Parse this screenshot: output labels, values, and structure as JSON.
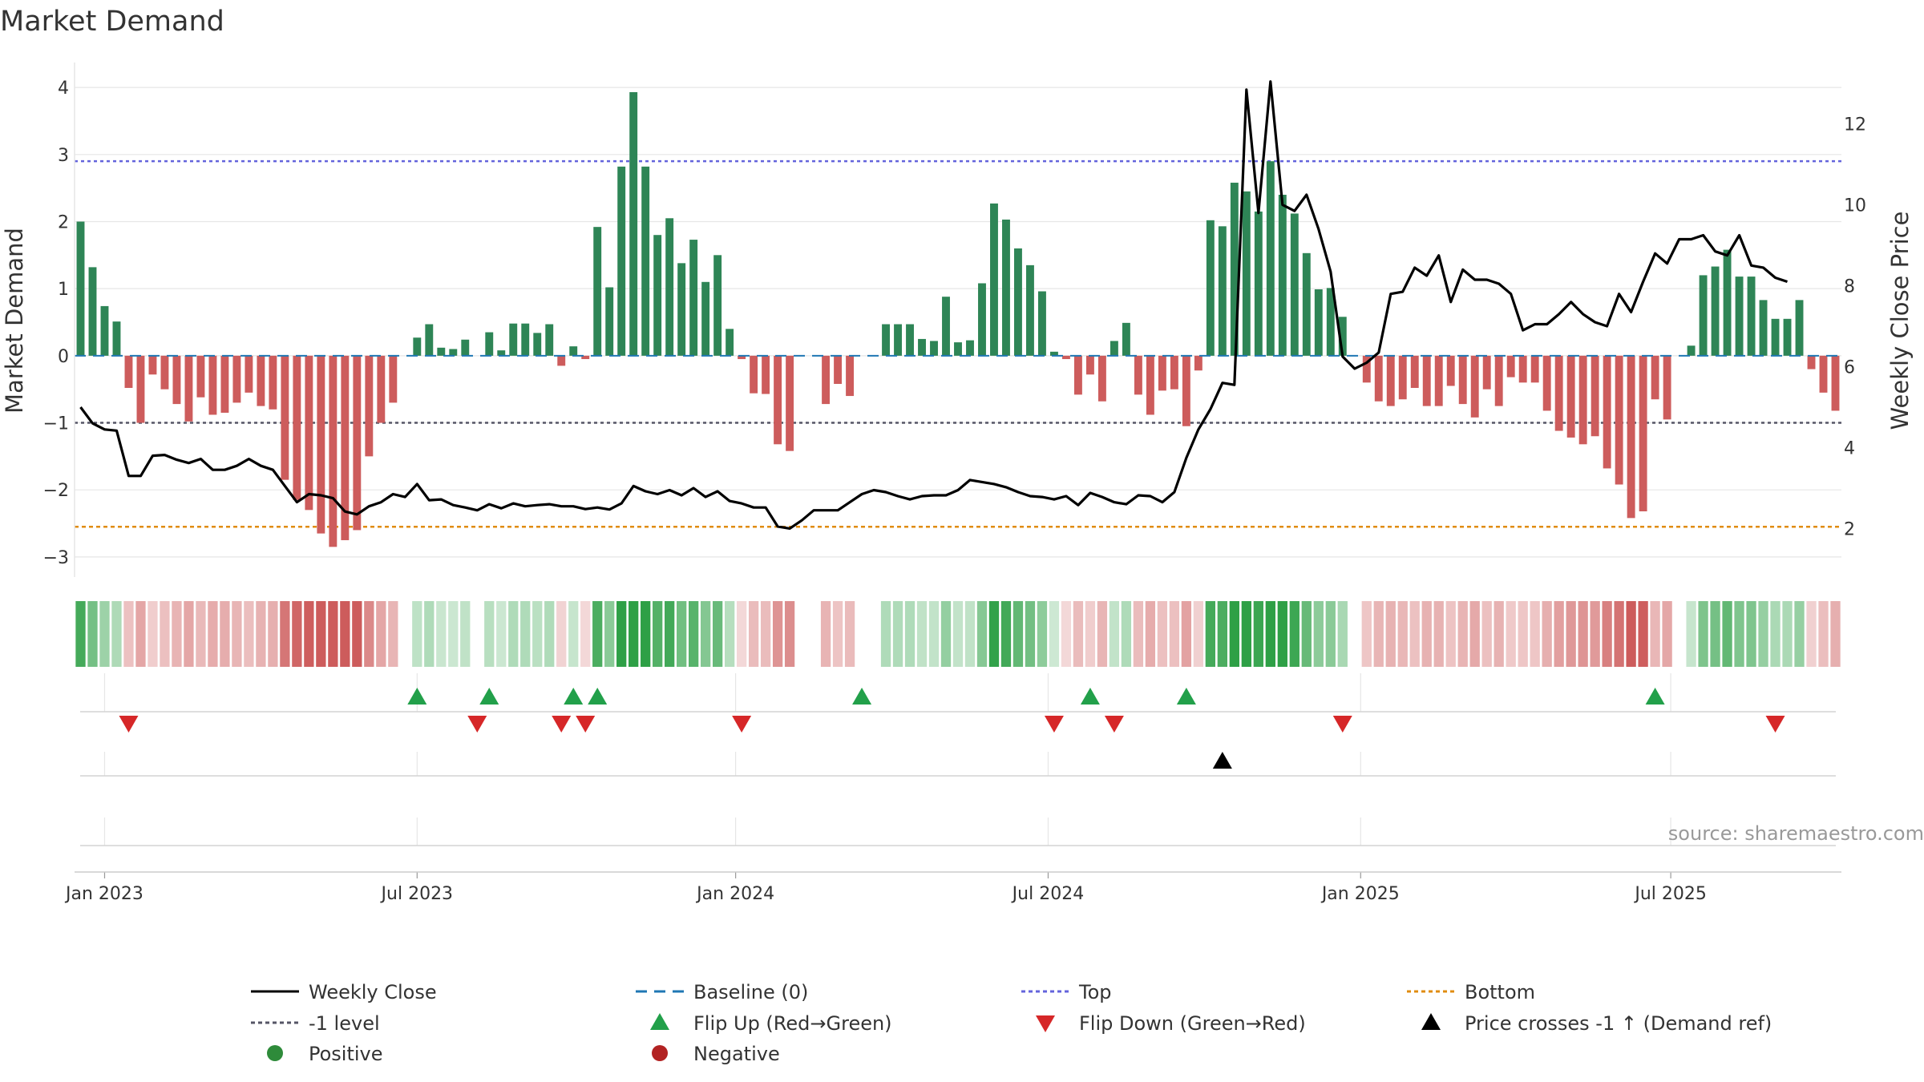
{
  "title": "Market Demand",
  "source": "source: sharemaestro.com",
  "chart_data": {
    "type": "bar",
    "title": "Market Demand",
    "ylabel": "Market Demand",
    "y2label": "Weekly Close Price",
    "ylim": [
      -3.3,
      4.3
    ],
    "y2lim": [
      0.8,
      13.4
    ],
    "yticks": [
      4,
      3,
      2,
      1,
      0,
      -1,
      -2,
      -3
    ],
    "ytick_labels": [
      "4",
      "3",
      "2",
      "1",
      "0",
      "−1",
      "−2",
      "−3"
    ],
    "y2ticks": [
      12,
      10,
      8,
      6,
      4,
      2
    ],
    "y2tick_labels": [
      "12",
      "10",
      "8",
      "6",
      "4",
      "2"
    ],
    "x_axis_labels": [
      {
        "week": 2,
        "label": "Jan 2023"
      },
      {
        "week": 28,
        "label": "Jul 2023"
      },
      {
        "week": 54.5,
        "label": "Jan 2024"
      },
      {
        "week": 80.5,
        "label": "Jul 2024"
      },
      {
        "week": 106.5,
        "label": "Jan 2025"
      },
      {
        "week": 132.3,
        "label": "Jul 2025"
      }
    ],
    "reference_lines": {
      "top": 2.9,
      "bottom": -2.55,
      "minus_one": -1,
      "baseline": 0
    },
    "start_date": "2022-12-23",
    "interval": "weekly",
    "demand": [
      2.0,
      1.32,
      0.74,
      0.51,
      -0.48,
      -1.0,
      -0.28,
      -0.5,
      -0.72,
      -0.98,
      -0.62,
      -0.88,
      -0.85,
      -0.7,
      -0.55,
      -0.75,
      -0.8,
      -1.85,
      -2.15,
      -2.3,
      -2.65,
      -2.85,
      -2.75,
      -2.6,
      -1.5,
      -1.0,
      -0.7,
      0.0,
      0.27,
      0.47,
      0.12,
      0.1,
      0.24,
      0.0,
      0.35,
      0.08,
      0.48,
      0.48,
      0.34,
      0.47,
      -0.15,
      0.14,
      -0.05,
      1.92,
      1.02,
      2.82,
      3.93,
      2.82,
      1.8,
      2.05,
      1.38,
      1.73,
      1.1,
      1.5,
      0.4,
      -0.05,
      -0.56,
      -0.57,
      -1.32,
      -1.42,
      0.0,
      0.0,
      -0.72,
      -0.42,
      -0.6,
      0.0,
      0.0,
      0.47,
      0.47,
      0.47,
      0.25,
      0.22,
      0.88,
      0.2,
      0.23,
      1.08,
      2.27,
      2.03,
      1.6,
      1.35,
      0.96,
      0.06,
      -0.05,
      -0.58,
      -0.28,
      -0.68,
      0.22,
      0.49,
      -0.58,
      -0.88,
      -0.52,
      -0.5,
      -1.05,
      -0.22,
      2.02,
      1.93,
      2.58,
      2.45,
      2.15,
      2.9,
      2.4,
      2.12,
      1.53,
      0.99,
      1.01,
      0.58,
      0.0,
      -0.4,
      -0.68,
      -0.75,
      -0.65,
      -0.48,
      -0.75,
      -0.75,
      -0.45,
      -0.72,
      -0.92,
      -0.5,
      -0.75,
      -0.32,
      -0.4,
      -0.4,
      -0.82,
      -1.12,
      -1.22,
      -1.32,
      -1.2,
      -1.68,
      -1.92,
      -2.42,
      -2.32,
      -0.65,
      -0.95,
      0.0,
      0.15,
      1.2,
      1.33,
      1.58,
      1.18,
      1.18,
      0.83,
      0.55,
      0.55,
      0.83,
      -0.2,
      -0.55,
      -0.82
    ],
    "weekly_close": [
      5.0,
      4.6,
      4.45,
      4.42,
      3.3,
      3.3,
      3.8,
      3.82,
      3.7,
      3.62,
      3.72,
      3.45,
      3.45,
      3.55,
      3.72,
      3.55,
      3.45,
      3.05,
      2.65,
      2.85,
      2.82,
      2.75,
      2.42,
      2.35,
      2.55,
      2.65,
      2.85,
      2.78,
      3.1,
      2.7,
      2.72,
      2.58,
      2.52,
      2.45,
      2.6,
      2.5,
      2.62,
      2.55,
      2.58,
      2.6,
      2.55,
      2.55,
      2.48,
      2.52,
      2.47,
      2.62,
      3.05,
      2.92,
      2.85,
      2.95,
      2.82,
      3.0,
      2.78,
      2.92,
      2.68,
      2.62,
      2.52,
      2.52,
      2.05,
      2.0,
      2.2,
      2.45,
      2.45,
      2.45,
      2.65,
      2.85,
      2.95,
      2.9,
      2.8,
      2.72,
      2.8,
      2.82,
      2.82,
      2.95,
      3.2,
      3.15,
      3.1,
      3.02,
      2.9,
      2.8,
      2.78,
      2.72,
      2.8,
      2.58,
      2.88,
      2.78,
      2.65,
      2.6,
      2.82,
      2.8,
      2.65,
      2.9,
      3.75,
      4.45,
      4.95,
      5.6,
      5.55,
      12.85,
      9.8,
      13.05,
      10.0,
      9.85,
      10.25,
      9.4,
      8.35,
      6.25,
      5.95,
      6.1,
      6.35,
      7.8,
      7.85,
      8.45,
      8.25,
      8.75,
      7.6,
      8.4,
      8.15,
      8.15,
      8.05,
      7.8,
      6.9,
      7.05,
      7.05,
      7.3,
      7.6,
      7.3,
      7.1,
      7.0,
      7.8,
      7.35,
      8.1,
      8.8,
      8.55,
      9.15,
      9.15,
      9.25,
      8.85,
      8.75,
      9.25,
      8.5,
      8.45,
      8.2,
      8.1
    ],
    "flip_up_weeks": [
      28,
      34,
      41,
      43,
      65,
      84,
      92,
      131
    ],
    "flip_down_weeks": [
      4,
      33,
      40,
      42,
      55,
      81,
      86,
      105,
      141
    ],
    "price_cross_weeks": [
      95
    ]
  },
  "legend": [
    {
      "label": "Weekly Close",
      "symbol": "line",
      "color": "#000000",
      "dash": "solid"
    },
    {
      "label": "Baseline (0)",
      "symbol": "line",
      "color": "#1f77b4",
      "dash": "dashed"
    },
    {
      "label": "Top",
      "symbol": "line",
      "color": "#6464dc",
      "dash": "dotted"
    },
    {
      "label": "Bottom",
      "symbol": "line",
      "color": "#e08c10",
      "dash": "dotted"
    },
    {
      "label": "-1 level",
      "symbol": "line",
      "color": "#555566",
      "dash": "dotted"
    },
    {
      "label": "Flip Up (Red→Green)",
      "symbol": "tri-up",
      "color": "#22a04a"
    },
    {
      "label": "Flip Down (Green→Red)",
      "symbol": "tri-down",
      "color": "#d62728"
    },
    {
      "label": "Price crosses -1 ↑ (Demand ref)",
      "symbol": "tri-up",
      "color": "#000000"
    },
    {
      "label": "Positive",
      "symbol": "circle",
      "color": "#2e8b3a"
    },
    {
      "label": "Negative",
      "symbol": "circle",
      "color": "#b22222"
    }
  ],
  "colors": {
    "positive_bar": "#2e8556",
    "negative_bar": "#cd5c5c",
    "close_line": "#000000",
    "top_line": "#6464dc",
    "bottom_line": "#e08c10",
    "minus_one_line": "#555566",
    "baseline": "#1f77b4",
    "flip_up": "#22a04a",
    "flip_down": "#d62728",
    "grid": "#e6e6e6"
  }
}
